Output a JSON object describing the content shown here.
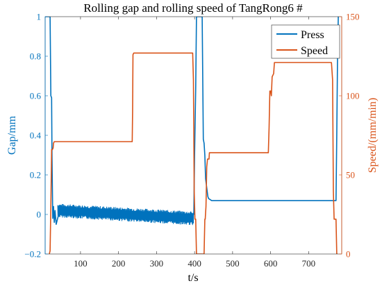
{
  "chart_data": {
    "type": "line",
    "title": "Rolling gap and rolling speed of TangRong6 #",
    "xlabel": "t/s",
    "ylabel_left": "Gap/mm",
    "ylabel_right": "Speed/(mm/min)",
    "xlim": [
      7,
      787
    ],
    "ylim_left": [
      -0.2,
      1.0
    ],
    "ylim_right": [
      0,
      150
    ],
    "x_ticks": [
      100,
      200,
      300,
      400,
      500,
      600,
      700
    ],
    "y_left_ticks": [
      -0.2,
      0,
      0.2,
      0.4,
      0.6,
      0.8,
      1
    ],
    "y_right_ticks": [
      0,
      50,
      100,
      150
    ],
    "x_tick_labels": [
      "100",
      "200",
      "300",
      "400",
      "500",
      "600",
      "700"
    ],
    "y_left_tick_labels": [
      "−0.2",
      "0",
      "0.2",
      "0.4",
      "0.6",
      "0.8",
      "1"
    ],
    "y_right_tick_labels": [
      "0",
      "50",
      "100",
      "150"
    ],
    "grid": false,
    "legend_position": "top-right",
    "series": [
      {
        "name": "Press",
        "axis": "left",
        "color": "#0072BD",
        "x": [
          7,
          20,
          22,
          24,
          25,
          27,
          29,
          31,
          33,
          36,
          45,
          45,
          398,
          400,
          403,
          405,
          410,
          415,
          420,
          423,
          425,
          427,
          429,
          435,
          437,
          445,
          770,
          772,
          774,
          776,
          778
        ],
        "y": [
          1.0,
          1.0,
          0.6,
          0.59,
          0.3,
          -0.02,
          0.04,
          -0.04,
          0.02,
          -0.05,
          0.02,
          0.02,
          0.0,
          0.3,
          0.64,
          1.0,
          1.0,
          1.0,
          1.0,
          0.38,
          0.36,
          0.3,
          0.18,
          0.09,
          0.08,
          0.07,
          0.07,
          0.07,
          0.4,
          0.8,
          1.0
        ],
        "noise": {
          "x_start": 40,
          "x_end": 398,
          "center_start": 0.02,
          "center_end": -0.02,
          "amplitude": 0.035
        }
      },
      {
        "name": "Speed",
        "axis": "right",
        "color": "#D95319",
        "x": [
          18,
          20,
          22,
          24,
          26,
          28,
          29,
          31,
          35,
          40,
          236,
          237,
          238,
          240,
          395,
          397,
          399,
          401,
          403,
          405,
          425,
          427,
          428,
          430,
          432,
          434,
          436,
          438,
          439,
          441,
          594,
          596,
          598,
          600,
          602,
          604,
          606,
          608,
          610,
          612,
          614,
          760,
          763,
          765,
          767,
          769,
          772,
          774,
          776
        ],
        "y": [
          0,
          2,
          30,
          66,
          66,
          67,
          70,
          71,
          71,
          71,
          71,
          90,
          126,
          127,
          127,
          110,
          40,
          22,
          22,
          0,
          0,
          22,
          22,
          30,
          55,
          60,
          60,
          60,
          64,
          64,
          64,
          80,
          103,
          103,
          100,
          112,
          113,
          114,
          121,
          121,
          121,
          121,
          110,
          40,
          22,
          22,
          22,
          0,
          0
        ]
      }
    ]
  }
}
